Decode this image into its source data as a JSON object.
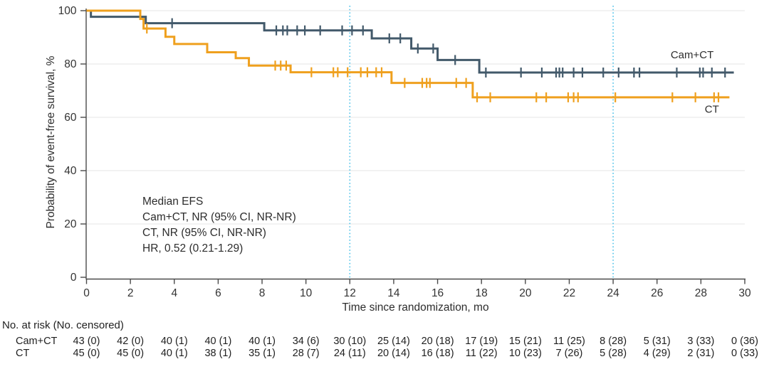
{
  "chart_data": {
    "type": "line",
    "subtype": "kaplan-meier-step",
    "title": "",
    "xlabel": "Time since randomization, mo",
    "ylabel": "Probability of event-free survival, %",
    "xlim": [
      0,
      30
    ],
    "ylim": [
      0,
      100
    ],
    "x_ticks": [
      0,
      2,
      4,
      6,
      8,
      10,
      12,
      14,
      16,
      18,
      20,
      22,
      24,
      26,
      28,
      30
    ],
    "y_ticks": [
      0,
      20,
      40,
      60,
      80,
      100
    ],
    "grid": "horizontal-light",
    "legend_position": "end-of-curve-labels",
    "reference_lines_x": [
      12,
      24
    ],
    "annotation_lines": [
      "Median EFS",
      "Cam+CT, NR (95% CI, NR-NR)",
      "CT, NR (95% CI, NR-NR)",
      "HR, 0.52 (0.21-1.29)"
    ],
    "colors": {
      "cam_ct": "#42596a",
      "ct": "#efa01e",
      "reference_line": "#4cc1e9",
      "grid": "#eaeaea",
      "axis": "#4a4a4a",
      "text": "#2d2d2d"
    },
    "series": [
      {
        "name": "Cam+CT",
        "color": "#42596a",
        "label_pos": [
          27.6,
          82.2
        ],
        "steps": [
          [
            0,
            100
          ],
          [
            0.2,
            97.7
          ],
          [
            2.7,
            95.3
          ],
          [
            8.1,
            92.6
          ],
          [
            13.0,
            89.6
          ],
          [
            14.8,
            85.8
          ],
          [
            16.0,
            81.5
          ],
          [
            17.9,
            76.8
          ],
          [
            29.5,
            76.8
          ]
        ],
        "censor_marks": [
          [
            3.9,
            95.3
          ],
          [
            8.65,
            92.6
          ],
          [
            8.95,
            92.6
          ],
          [
            9.15,
            92.6
          ],
          [
            9.6,
            92.6
          ],
          [
            9.95,
            92.6
          ],
          [
            10.65,
            92.6
          ],
          [
            11.65,
            92.6
          ],
          [
            12.1,
            92.6
          ],
          [
            12.6,
            92.6
          ],
          [
            13.8,
            89.6
          ],
          [
            14.3,
            89.6
          ],
          [
            15.1,
            85.8
          ],
          [
            15.8,
            85.8
          ],
          [
            16.8,
            81.5
          ],
          [
            18.2,
            76.8
          ],
          [
            19.8,
            76.8
          ],
          [
            20.75,
            76.8
          ],
          [
            21.4,
            76.8
          ],
          [
            21.55,
            76.8
          ],
          [
            21.7,
            76.8
          ],
          [
            22.2,
            76.8
          ],
          [
            22.6,
            76.8
          ],
          [
            23.55,
            76.8
          ],
          [
            24.25,
            76.8
          ],
          [
            24.95,
            76.8
          ],
          [
            25.2,
            76.8
          ],
          [
            26.9,
            76.8
          ],
          [
            27.95,
            76.8
          ],
          [
            28.1,
            76.8
          ],
          [
            28.5,
            76.8
          ],
          [
            29.1,
            76.8
          ]
        ]
      },
      {
        "name": "CT",
        "color": "#efa01e",
        "label_pos": [
          28.5,
          61.8
        ],
        "steps": [
          [
            0,
            100
          ],
          [
            2.45,
            96.9
          ],
          [
            2.6,
            93.3
          ],
          [
            3.6,
            90.2
          ],
          [
            4.0,
            87.5
          ],
          [
            5.5,
            84.4
          ],
          [
            6.8,
            82.2
          ],
          [
            7.4,
            79.4
          ],
          [
            9.3,
            76.9
          ],
          [
            13.9,
            72.9
          ],
          [
            17.6,
            67.5
          ],
          [
            29.3,
            67.5
          ]
        ],
        "censor_marks": [
          [
            2.75,
            93.3
          ],
          [
            8.6,
            79.4
          ],
          [
            8.85,
            79.4
          ],
          [
            9.1,
            79.4
          ],
          [
            10.25,
            76.9
          ],
          [
            11.25,
            76.9
          ],
          [
            11.45,
            76.9
          ],
          [
            11.9,
            76.9
          ],
          [
            12.5,
            76.9
          ],
          [
            12.8,
            76.9
          ],
          [
            13.2,
            76.9
          ],
          [
            13.45,
            76.9
          ],
          [
            14.5,
            72.9
          ],
          [
            15.3,
            72.9
          ],
          [
            15.5,
            72.9
          ],
          [
            15.65,
            72.9
          ],
          [
            16.85,
            72.9
          ],
          [
            17.3,
            72.9
          ],
          [
            17.8,
            67.5
          ],
          [
            18.4,
            67.5
          ],
          [
            20.5,
            67.5
          ],
          [
            20.95,
            67.5
          ],
          [
            21.95,
            67.5
          ],
          [
            22.2,
            67.5
          ],
          [
            22.4,
            67.5
          ],
          [
            24.1,
            67.5
          ],
          [
            26.7,
            67.5
          ],
          [
            27.75,
            67.5
          ],
          [
            28.6,
            67.5
          ],
          [
            28.8,
            67.5
          ]
        ]
      }
    ],
    "risk_table": {
      "header": "No. at risk (No. censored)",
      "time_points": [
        0,
        2,
        4,
        6,
        8,
        10,
        12,
        14,
        16,
        18,
        20,
        22,
        24,
        26,
        28,
        30
      ],
      "rows": [
        {
          "label": "Cam+CT",
          "values": [
            "43 (0)",
            "42 (0)",
            "40 (1)",
            "40 (1)",
            "40 (1)",
            "34 (6)",
            "30 (10)",
            "25 (14)",
            "20 (18)",
            "17 (19)",
            "15 (21)",
            "11 (25)",
            "8 (28)",
            "5 (31)",
            "3 (33)",
            "0 (36)"
          ]
        },
        {
          "label": "CT",
          "values": [
            "45 (0)",
            "45 (0)",
            "40 (1)",
            "38 (1)",
            "35 (1)",
            "28 (7)",
            "24 (11)",
            "20 (14)",
            "16 (18)",
            "11 (22)",
            "10 (23)",
            "7 (26)",
            "5 (28)",
            "4 (29)",
            "2 (31)",
            "0 (33)"
          ]
        }
      ]
    }
  }
}
